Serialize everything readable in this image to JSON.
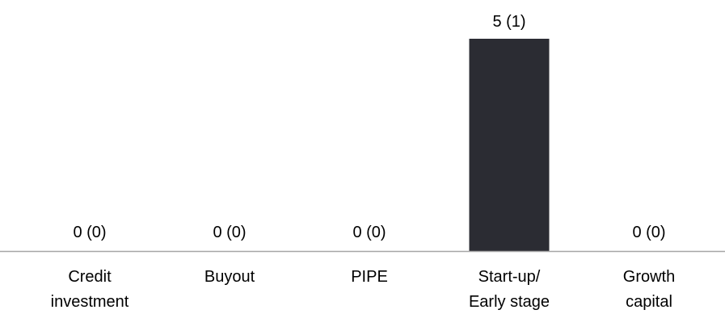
{
  "chart_data": {
    "type": "bar",
    "categories": [
      [
        "Credit",
        "investment"
      ],
      [
        "Buyout"
      ],
      [
        "PIPE"
      ],
      [
        "Start-up/",
        "Early stage"
      ],
      [
        "Growth",
        "capital"
      ]
    ],
    "values": [
      0,
      0,
      0,
      5,
      0
    ],
    "data_labels": [
      "0 (0)",
      "0 (0)",
      "0 (0)",
      "5 (1)",
      "0 (0)"
    ],
    "ylim": [
      0,
      5
    ],
    "grid": false,
    "legend": "none",
    "bar_color": "#2b2c33",
    "axis_color": "#a6a6a6"
  }
}
